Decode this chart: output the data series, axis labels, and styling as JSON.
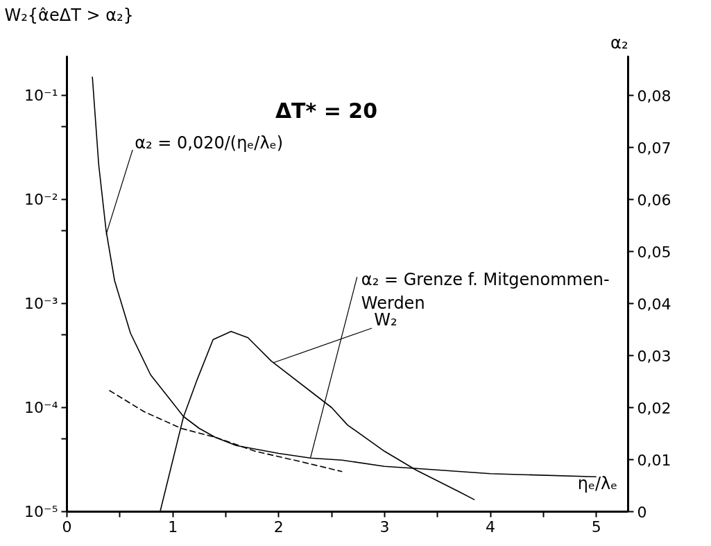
{
  "chart_data": {
    "type": "line",
    "title": "ΔT* = 20",
    "xlabel": "ηₑ/λₑ",
    "ylabel": "W₂{α̂eΔT > α₂}",
    "y2label": "α₂",
    "log": "y",
    "xlim": [
      0,
      5.3
    ],
    "xticks": [
      0,
      {
        "value": 0.5,
        "label": null
      },
      1,
      {
        "value": 1.5,
        "label": null
      },
      2,
      {
        "value": 2.5,
        "label": null
      },
      3,
      {
        "value": 3.5,
        "label": null
      },
      4,
      {
        "value": 4.5,
        "label": null
      },
      5
    ],
    "ylim": [
      1e-05,
      0.24
    ],
    "yticks": [
      {
        "value": 1e-05,
        "label": "10⁻⁵"
      },
      {
        "value": 5e-05,
        "label": null
      },
      {
        "value": 0.0001,
        "label": "10⁻⁴"
      },
      {
        "value": 0.0005,
        "label": null
      },
      {
        "value": 0.001,
        "label": "10⁻³"
      },
      {
        "value": 0.005,
        "label": null
      },
      {
        "value": 0.01,
        "label": "10⁻²"
      },
      {
        "value": 0.05,
        "label": null
      },
      {
        "value": 0.1,
        "label": "10⁻¹"
      }
    ],
    "y2lim": [
      0,
      0.0876
    ],
    "y2ticks": [
      0,
      {
        "value": 0.01,
        "label": "0,01"
      },
      {
        "value": 0.02,
        "label": "0,02"
      },
      {
        "value": 0.03,
        "label": "0,03"
      },
      {
        "value": 0.04,
        "label": "0,04"
      },
      {
        "value": 0.05,
        "label": "0,05"
      },
      {
        "value": 0.06,
        "label": "0,06"
      },
      {
        "value": 0.07,
        "label": "0,07"
      },
      {
        "value": 0.08,
        "label": "0,08"
      }
    ],
    "series": [
      {
        "color": "#000000",
        "axis": "y2",
        "line_style": "solid",
        "x": [
          0.24,
          0.3,
          0.37,
          0.45,
          0.6,
          0.79,
          1.0,
          1.1,
          1.25,
          1.4,
          1.6,
          2.0,
          2.3,
          2.6,
          3.0,
          3.3,
          4.0,
          5.0
        ],
        "values": [
          0.0836,
          0.0667,
          0.054,
          0.0444,
          0.0343,
          0.0263,
          0.0209,
          0.0183,
          0.016,
          0.0143,
          0.0127,
          0.0112,
          0.0103,
          0.0099,
          0.0087,
          0.0083,
          0.0073,
          0.0067
        ]
      },
      {
        "color": "#000000",
        "axis": "y2",
        "line_style": "dashed",
        "x": [
          0.4,
          0.73,
          1.08,
          1.4,
          1.78,
          2.21,
          2.6
        ],
        "values": [
          0.0233,
          0.0192,
          0.016,
          0.0143,
          0.0116,
          0.0096,
          0.0077
        ]
      },
      {
        "color": "#000000",
        "axis": "y",
        "line_style": "solid",
        "x": [
          0.88,
          1.1,
          1.23,
          1.38,
          1.55,
          1.71,
          1.93,
          2.5,
          2.65,
          3.0,
          3.3,
          3.7,
          3.85
        ],
        "values": [
          1e-05,
          8.1e-05,
          0.000186,
          0.00045,
          0.00054,
          0.00047,
          0.00028,
          0.0001,
          6.8e-05,
          3.8e-05,
          2.5e-05,
          1.56e-05,
          1.3e-05
        ]
      }
    ],
    "annotations": [
      {
        "text": "α₂ = 0,020/(ηₑ/λₑ)",
        "x": 0.37,
        "y": 0.0046
      },
      {
        "text": "W₂",
        "x": 1.95,
        "y": 0.00027
      },
      {
        "text": "α₂ = Grenze f. Mitgenommen-\nWerden",
        "x": 2.3,
        "y": 3.3e-05
      }
    ]
  }
}
